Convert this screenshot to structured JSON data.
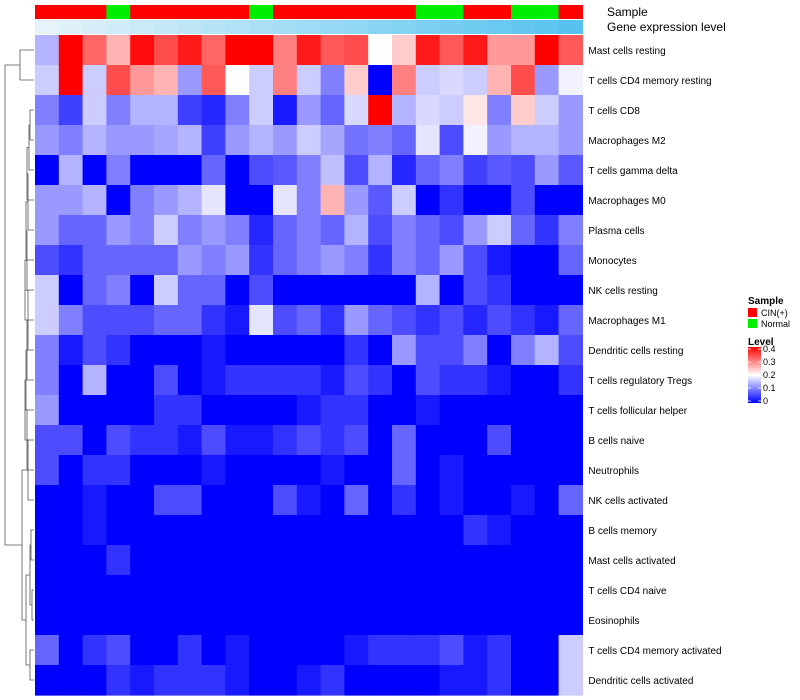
{
  "chart_data": {
    "type": "heatmap",
    "annotations": {
      "sample_label": "Sample",
      "expression_label": "Gene expression level",
      "samples": [
        "CIN(+)",
        "CIN(+)",
        "CIN(+)",
        "Normal",
        "CIN(+)",
        "CIN(+)",
        "CIN(+)",
        "CIN(+)",
        "CIN(+)",
        "Normal",
        "CIN(+)",
        "CIN(+)",
        "CIN(+)",
        "CIN(+)",
        "CIN(+)",
        "CIN(+)",
        "Normal",
        "Normal",
        "CIN(+)",
        "CIN(+)",
        "Normal",
        "Normal",
        "CIN(+)"
      ],
      "expression_levels": [
        0.05,
        0.1,
        0.14,
        0.18,
        0.22,
        0.26,
        0.3,
        0.34,
        0.38,
        0.42,
        0.46,
        0.5,
        0.54,
        0.58,
        0.62,
        0.66,
        0.7,
        0.74,
        0.78,
        0.82,
        0.86,
        0.9,
        0.95
      ]
    },
    "rows": [
      "Mast cells resting",
      "T cells CD4 memory resting",
      "T cells CD8",
      "Macrophages M2",
      "T cells gamma delta",
      "Macrophages M0",
      "Plasma cells",
      "Monocytes",
      "NK cells resting",
      "Macrophages M1",
      "Dendritic cells resting",
      "T cells regulatory  Tregs",
      "T cells follicular helper",
      "B cells naive",
      "Neutrophils",
      "NK cells activated",
      "B cells memory",
      "Mast cells activated",
      "T cells CD4 naive",
      "Eosinophils",
      "T cells CD4 memory activated",
      "Dendritic cells activated"
    ],
    "values": [
      [
        0.14,
        0.4,
        0.32,
        0.26,
        0.39,
        0.34,
        0.38,
        0.32,
        0.4,
        0.4,
        0.3,
        0.38,
        0.33,
        0.34,
        0.2,
        0.24,
        0.38,
        0.33,
        0.38,
        0.28,
        0.28,
        0.4,
        0.33
      ],
      [
        0.16,
        0.4,
        0.16,
        0.34,
        0.28,
        0.26,
        0.12,
        0.33,
        0.2,
        0.16,
        0.3,
        0.16,
        0.1,
        0.24,
        0.0,
        0.3,
        0.16,
        0.17,
        0.16,
        0.26,
        0.34,
        0.12,
        0.19
      ],
      [
        0.1,
        0.05,
        0.16,
        0.1,
        0.14,
        0.14,
        0.05,
        0.03,
        0.1,
        0.16,
        0.02,
        0.12,
        0.08,
        0.17,
        0.4,
        0.14,
        0.17,
        0.16,
        0.22,
        0.1,
        0.24,
        0.16,
        0.12
      ],
      [
        0.12,
        0.1,
        0.14,
        0.12,
        0.12,
        0.13,
        0.14,
        0.05,
        0.12,
        0.14,
        0.12,
        0.16,
        0.13,
        0.09,
        0.1,
        0.08,
        0.18,
        0.06,
        0.19,
        0.12,
        0.14,
        0.14,
        0.12
      ],
      [
        0.0,
        0.14,
        0.0,
        0.1,
        0.0,
        0.0,
        0.0,
        0.08,
        0.0,
        0.06,
        0.07,
        0.1,
        0.15,
        0.06,
        0.14,
        0.03,
        0.08,
        0.1,
        0.05,
        0.07,
        0.06,
        0.12,
        0.07
      ],
      [
        0.12,
        0.12,
        0.14,
        0.0,
        0.1,
        0.12,
        0.14,
        0.18,
        0.0,
        0.0,
        0.18,
        0.1,
        0.26,
        0.12,
        0.07,
        0.16,
        0.0,
        0.04,
        0.0,
        0.0,
        0.06,
        0.0,
        0.0
      ],
      [
        0.12,
        0.08,
        0.08,
        0.12,
        0.1,
        0.16,
        0.1,
        0.12,
        0.1,
        0.03,
        0.08,
        0.1,
        0.08,
        0.14,
        0.06,
        0.1,
        0.08,
        0.06,
        0.12,
        0.16,
        0.08,
        0.04,
        0.1
      ],
      [
        0.06,
        0.04,
        0.08,
        0.08,
        0.08,
        0.08,
        0.12,
        0.1,
        0.12,
        0.04,
        0.08,
        0.1,
        0.12,
        0.1,
        0.04,
        0.1,
        0.08,
        0.12,
        0.06,
        0.02,
        0.0,
        0.0,
        0.08
      ],
      [
        0.16,
        0.0,
        0.08,
        0.1,
        0.0,
        0.16,
        0.08,
        0.08,
        0.0,
        0.06,
        0.0,
        0.0,
        0.0,
        0.0,
        0.0,
        0.0,
        0.14,
        0.0,
        0.06,
        0.04,
        0.0,
        0.0,
        0.0
      ],
      [
        0.16,
        0.1,
        0.06,
        0.06,
        0.06,
        0.08,
        0.08,
        0.04,
        0.02,
        0.18,
        0.06,
        0.08,
        0.04,
        0.12,
        0.08,
        0.06,
        0.04,
        0.06,
        0.03,
        0.06,
        0.04,
        0.02,
        0.08
      ],
      [
        0.1,
        0.02,
        0.06,
        0.04,
        0.0,
        0.0,
        0.0,
        0.02,
        0.0,
        0.0,
        0.0,
        0.0,
        0.0,
        0.04,
        0.0,
        0.12,
        0.06,
        0.06,
        0.1,
        0.0,
        0.1,
        0.14,
        0.06
      ],
      [
        0.1,
        0.0,
        0.14,
        0.0,
        0.0,
        0.06,
        0.0,
        0.02,
        0.04,
        0.04,
        0.04,
        0.04,
        0.02,
        0.06,
        0.04,
        0.0,
        0.06,
        0.04,
        0.04,
        0.02,
        0.0,
        0.0,
        0.04
      ],
      [
        0.12,
        0.0,
        0.0,
        0.0,
        0.0,
        0.04,
        0.04,
        0.0,
        0.0,
        0.0,
        0.0,
        0.02,
        0.04,
        0.04,
        0.0,
        0.0,
        0.02,
        0.0,
        0.0,
        0.0,
        0.0,
        0.0,
        0.0
      ],
      [
        0.06,
        0.06,
        0.0,
        0.06,
        0.04,
        0.04,
        0.02,
        0.06,
        0.02,
        0.02,
        0.04,
        0.06,
        0.04,
        0.06,
        0.0,
        0.08,
        0.0,
        0.0,
        0.0,
        0.06,
        0.0,
        0.0,
        0.0
      ],
      [
        0.06,
        0.0,
        0.04,
        0.04,
        0.0,
        0.0,
        0.0,
        0.02,
        0.0,
        0.0,
        0.0,
        0.0,
        0.02,
        0.0,
        0.0,
        0.08,
        0.0,
        0.02,
        0.0,
        0.0,
        0.0,
        0.0,
        0.0
      ],
      [
        0.0,
        0.0,
        0.02,
        0.0,
        0.0,
        0.06,
        0.06,
        0.0,
        0.0,
        0.0,
        0.06,
        0.02,
        0.0,
        0.08,
        0.0,
        0.04,
        0.0,
        0.02,
        0.0,
        0.0,
        0.02,
        0.0,
        0.08
      ],
      [
        0.0,
        0.0,
        0.02,
        0.0,
        0.0,
        0.0,
        0.0,
        0.0,
        0.0,
        0.0,
        0.0,
        0.0,
        0.0,
        0.0,
        0.0,
        0.0,
        0.0,
        0.0,
        0.04,
        0.02,
        0.0,
        0.0,
        0.0
      ],
      [
        0.0,
        0.0,
        0.0,
        0.04,
        0.0,
        0.0,
        0.0,
        0.0,
        0.0,
        0.0,
        0.0,
        0.0,
        0.0,
        0.0,
        0.0,
        0.0,
        0.0,
        0.0,
        0.0,
        0.0,
        0.0,
        0.0,
        0.0
      ],
      [
        0.0,
        0.0,
        0.0,
        0.0,
        0.0,
        0.0,
        0.0,
        0.0,
        0.0,
        0.0,
        0.0,
        0.0,
        0.0,
        0.0,
        0.0,
        0.0,
        0.0,
        0.0,
        0.0,
        0.0,
        0.0,
        0.0,
        0.0
      ],
      [
        0.0,
        0.0,
        0.0,
        0.0,
        0.0,
        0.0,
        0.0,
        0.0,
        0.0,
        0.0,
        0.0,
        0.0,
        0.0,
        0.0,
        0.0,
        0.0,
        0.0,
        0.0,
        0.0,
        0.0,
        0.0,
        0.0,
        0.0
      ],
      [
        0.08,
        0.0,
        0.04,
        0.06,
        0.0,
        0.0,
        0.04,
        0.0,
        0.02,
        0.0,
        0.0,
        0.0,
        0.0,
        0.02,
        0.04,
        0.04,
        0.04,
        0.06,
        0.02,
        0.04,
        0.0,
        0.0,
        0.16
      ],
      [
        0.0,
        0.0,
        0.0,
        0.04,
        0.02,
        0.04,
        0.04,
        0.04,
        0.02,
        0.0,
        0.0,
        0.02,
        0.04,
        0.0,
        0.0,
        0.0,
        0.0,
        0.02,
        0.02,
        0.04,
        0.0,
        0.0,
        0.16
      ]
    ],
    "legend": {
      "sample_title": "Sample",
      "sample_entries": [
        {
          "label": "CIN(+)",
          "color": "#ff0000"
        },
        {
          "label": "Normal",
          "color": "#00ee00"
        }
      ],
      "level_title": "Level",
      "level_ticks": [
        "0.4",
        "0.3",
        "0.2",
        "0.1",
        "0"
      ],
      "level_tick_values": [
        0.4,
        0.3,
        0.2,
        0.1,
        0
      ],
      "scale": {
        "min": 0,
        "mid": 0.2,
        "max": 0.4,
        "low_color": "#0000ff",
        "mid_color": "#ffffff",
        "high_color": "#ff0000"
      }
    },
    "expression_scale": {
      "low_color": "#eef6fb",
      "high_color": "#4dbfee"
    },
    "colors": {
      "cin": "#ff0000",
      "normal": "#00ee00"
    }
  }
}
